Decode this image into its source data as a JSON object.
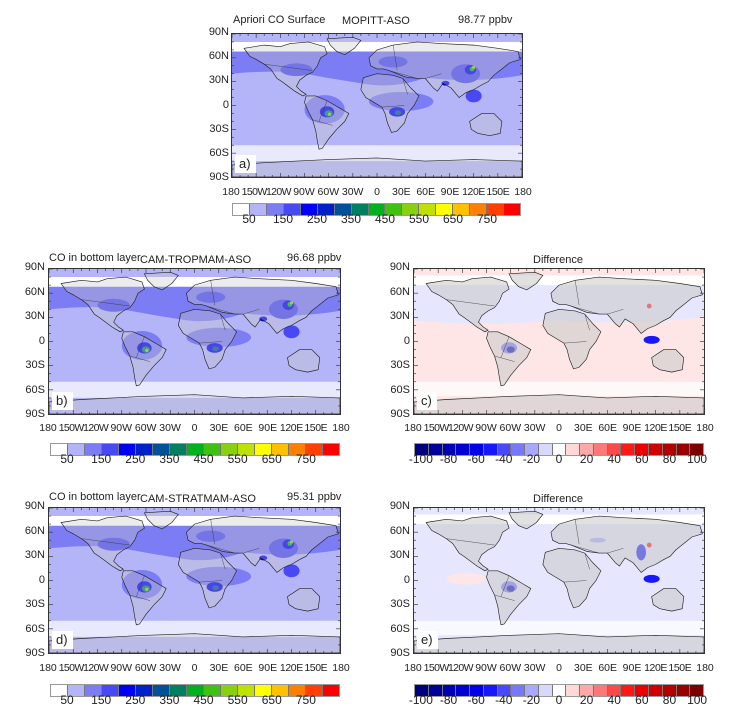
{
  "chart_data": [
    {
      "id": "a",
      "type": "heatmap",
      "panel_label": "a)",
      "title_left": "Apriori CO Surface",
      "title_center": "MOPITT-ASO",
      "title_right": "98.77 ppbv",
      "xticks": [
        "180",
        "150W",
        "120W",
        "90W",
        "60W",
        "30W",
        "0",
        "30E",
        "60E",
        "90E",
        "120E",
        "150E",
        "180"
      ],
      "yticks": [
        "90N",
        "60N",
        "30N",
        "0",
        "30S",
        "60S",
        "90S"
      ],
      "colorbar": {
        "labels": [
          "50",
          "150",
          "250",
          "350",
          "450",
          "550",
          "650",
          "750"
        ],
        "units": "ppbv"
      },
      "global_mean": 98.77
    },
    {
      "id": "b",
      "type": "heatmap",
      "panel_label": "b)",
      "title_left": "CO in bottom layer",
      "title_center": "CAM-TROPMAM-ASO",
      "title_right": "96.68 ppbv",
      "xticks": [
        "180",
        "150W",
        "120W",
        "90W",
        "60W",
        "30W",
        "0",
        "30E",
        "60E",
        "90E",
        "120E",
        "150E",
        "180"
      ],
      "yticks": [
        "90N",
        "60N",
        "30N",
        "0",
        "30S",
        "60S",
        "90S"
      ],
      "colorbar": {
        "labels": [
          "50",
          "150",
          "250",
          "350",
          "450",
          "550",
          "650",
          "750"
        ],
        "units": "ppbv"
      },
      "global_mean": 96.68
    },
    {
      "id": "c",
      "type": "heatmap",
      "panel_label": "c)",
      "title_center": "Difference",
      "xticks": [
        "180",
        "150W",
        "120W",
        "90W",
        "60W",
        "30W",
        "0",
        "30E",
        "60E",
        "90E",
        "120E",
        "150E",
        "180"
      ],
      "yticks": [
        "90N",
        "60N",
        "30N",
        "0",
        "30S",
        "60S",
        "90S"
      ],
      "colorbar": {
        "labels": [
          "-100",
          "-80",
          "-60",
          "-40",
          "-20",
          "0",
          "20",
          "40",
          "60",
          "80",
          "100"
        ]
      }
    },
    {
      "id": "d",
      "type": "heatmap",
      "panel_label": "d)",
      "title_left": "CO in bottom layer",
      "title_center": "CAM-STRATMAM-ASO",
      "title_right": "95.31 ppbv",
      "xticks": [
        "180",
        "150W",
        "120W",
        "90W",
        "60W",
        "30W",
        "0",
        "30E",
        "60E",
        "90E",
        "120E",
        "150E",
        "180"
      ],
      "yticks": [
        "90N",
        "60N",
        "30N",
        "0",
        "30S",
        "60S",
        "90S"
      ],
      "colorbar": {
        "labels": [
          "50",
          "150",
          "250",
          "350",
          "450",
          "550",
          "650",
          "750"
        ],
        "units": "ppbv"
      },
      "global_mean": 95.31
    },
    {
      "id": "e",
      "type": "heatmap",
      "panel_label": "e)",
      "title_center": "Difference",
      "xticks": [
        "180",
        "150W",
        "120W",
        "90W",
        "60W",
        "30W",
        "0",
        "30E",
        "60E",
        "90E",
        "120E",
        "150E",
        "180"
      ],
      "yticks": [
        "90N",
        "60N",
        "30N",
        "0",
        "30S",
        "60S",
        "90S"
      ],
      "colorbar": {
        "labels": [
          "-100",
          "-80",
          "-60",
          "-40",
          "-20",
          "0",
          "20",
          "40",
          "60",
          "80",
          "100"
        ]
      }
    }
  ],
  "colors": {
    "seq": [
      "#ffffff",
      "#b4b4f8",
      "#7c7cf4",
      "#4848f4",
      "#0000f8",
      "#0020c8",
      "#00509a",
      "#008060",
      "#00b020",
      "#40c010",
      "#88d010",
      "#c0e000",
      "#ffff00",
      "#ffc000",
      "#ff8000",
      "#ff4000",
      "#ff0000"
    ],
    "div": [
      "#00007c",
      "#000098",
      "#0000b4",
      "#0000d0",
      "#0000ec",
      "#1818ff",
      "#4848ff",
      "#7878ff",
      "#a8a8ff",
      "#d8d8ff",
      "#ffffff",
      "#ffd8d8",
      "#ffa8a8",
      "#ff7878",
      "#ff4848",
      "#ff1818",
      "#ec0000",
      "#d00000",
      "#b40000",
      "#980000",
      "#7c0000"
    ],
    "land_missing": "#c8c8c8",
    "seq_bg_ocean": "#b4b4f8",
    "seq_bg_mid": "#7c7cf4",
    "div_bg_neg": "#e6e6ff",
    "div_bg_pos": "#ffe6e6"
  }
}
